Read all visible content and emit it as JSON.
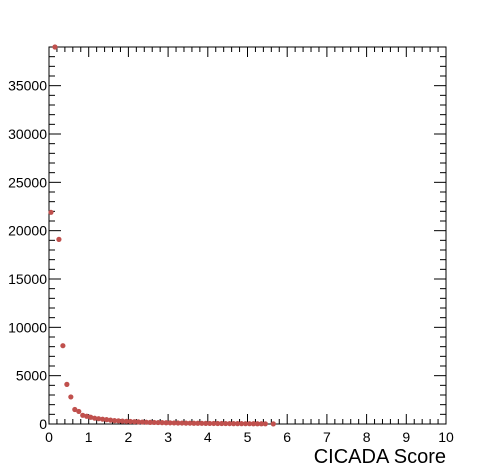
{
  "chart_data": {
    "type": "scatter",
    "title": "",
    "xlabel": "CICADA Score",
    "ylabel": "",
    "xlim": [
      0,
      10
    ],
    "ylim": [
      0,
      39000
    ],
    "x_ticks": [
      0,
      1,
      2,
      3,
      4,
      5,
      6,
      7,
      8,
      9,
      10
    ],
    "y_ticks": [
      0,
      5000,
      10000,
      15000,
      20000,
      25000,
      30000,
      35000
    ],
    "grid": false,
    "legend": "none",
    "marker_color": "#c0504d",
    "series": [
      {
        "x": [
          0.05,
          0.15,
          0.25,
          0.35,
          0.45,
          0.55,
          0.65,
          0.75,
          0.85,
          0.95,
          1.05,
          1.15,
          1.25,
          1.35,
          1.45,
          1.55,
          1.65,
          1.75,
          1.85,
          1.95,
          2.05,
          2.15,
          2.25,
          2.35,
          2.45,
          2.55,
          2.65,
          2.75,
          2.85,
          2.95,
          3.05,
          3.15,
          3.25,
          3.35,
          3.45,
          3.55,
          3.65,
          3.75,
          3.85,
          3.95,
          4.05,
          4.15,
          4.25,
          4.35,
          4.45,
          4.55,
          4.65,
          4.75,
          4.85,
          4.95,
          5.05,
          5.15,
          5.25,
          5.35,
          5.45,
          5.65
        ],
        "y": [
          21900,
          39000,
          19100,
          8100,
          4100,
          2800,
          1500,
          1300,
          900,
          800,
          700,
          600,
          550,
          500,
          450,
          400,
          350,
          330,
          300,
          280,
          260,
          240,
          220,
          200,
          190,
          170,
          160,
          150,
          140,
          130,
          120,
          110,
          100,
          95,
          90,
          85,
          80,
          75,
          70,
          65,
          60,
          55,
          50,
          48,
          45,
          42,
          40,
          38,
          35,
          32,
          30,
          28,
          25,
          22,
          20,
          15
        ]
      }
    ]
  }
}
